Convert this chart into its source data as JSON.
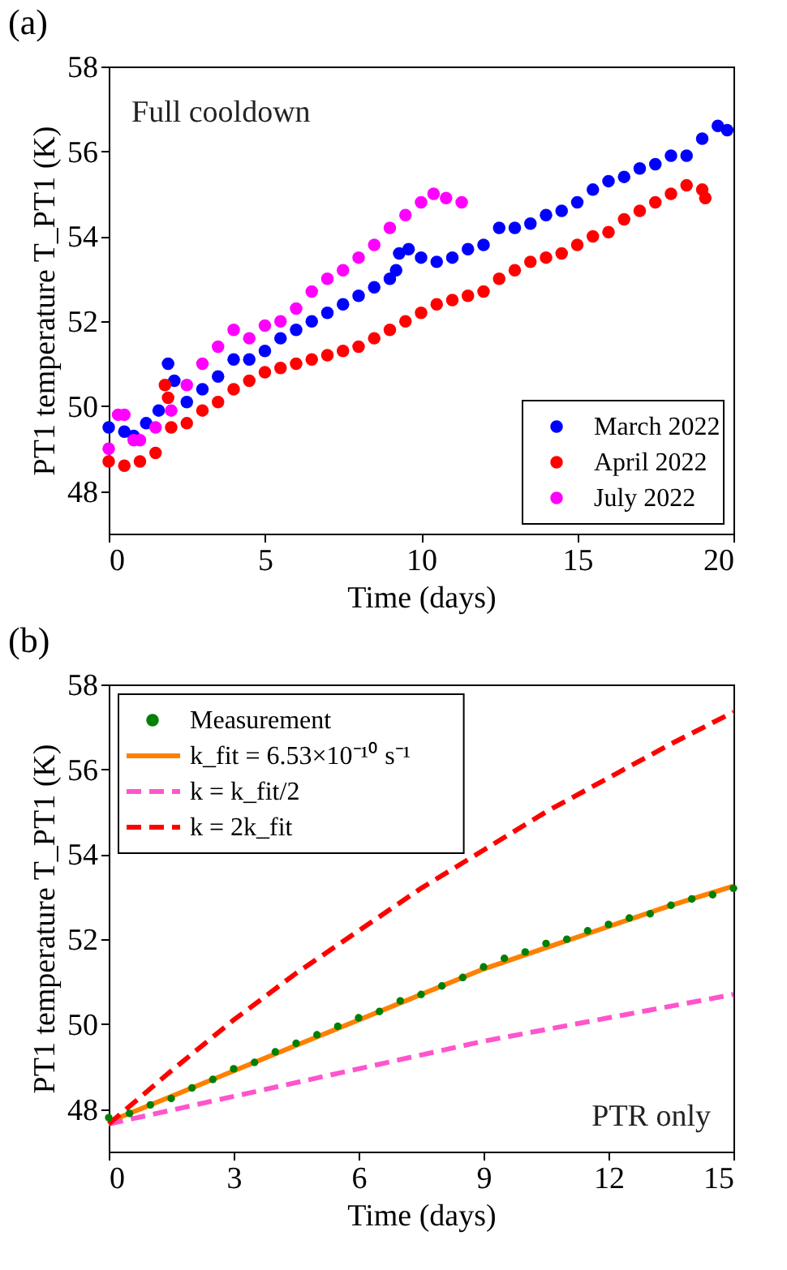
{
  "chart_data": [
    {
      "type": "scatter",
      "title": "(a)",
      "xlabel": "Time (days)",
      "ylabel": "PT1 temperature T_PT1 (K)",
      "xlim": [
        0,
        20
      ],
      "xticks": [
        0,
        5,
        10,
        15,
        20
      ],
      "ylim": [
        47,
        58
      ],
      "yticks": [
        48,
        50,
        52,
        54,
        56,
        58
      ],
      "grid": false,
      "legend": "bottom right",
      "marker": "circle",
      "annotations": [
        "Full cooldown"
      ],
      "series": [
        {
          "name": "March 2022",
          "color": "#0000ff",
          "x": [
            0,
            0.5,
            0.8,
            1.2,
            1.6,
            1.9,
            2.1,
            2.5,
            3,
            3.5,
            4,
            4.5,
            5,
            5.5,
            6,
            6.5,
            7,
            7.5,
            8,
            8.5,
            9,
            9.2,
            9.3,
            9.6,
            10,
            10.5,
            11,
            11.5,
            12,
            12.5,
            13,
            13.5,
            14,
            14.5,
            15,
            15.5,
            16,
            16.5,
            17,
            17.5,
            18,
            18.5,
            19,
            19.5,
            19.8
          ],
          "values": [
            49.5,
            49.4,
            49.3,
            49.6,
            49.9,
            51.0,
            50.6,
            50.1,
            50.4,
            50.7,
            51.1,
            51.1,
            51.3,
            51.6,
            51.8,
            52.0,
            52.2,
            52.4,
            52.6,
            52.8,
            53.0,
            53.2,
            53.6,
            53.7,
            53.5,
            53.4,
            53.5,
            53.7,
            53.8,
            54.2,
            54.2,
            54.3,
            54.5,
            54.6,
            54.8,
            55.1,
            55.3,
            55.4,
            55.6,
            55.7,
            55.9,
            55.9,
            56.3,
            56.6,
            56.5
          ]
        },
        {
          "name": "April 2022",
          "color": "#ff0000",
          "x": [
            0,
            0.5,
            1,
            1.5,
            1.8,
            1.9,
            2,
            2.5,
            3,
            3.5,
            4,
            4.5,
            5,
            5.5,
            6,
            6.5,
            7,
            7.5,
            8,
            8.5,
            9,
            9.5,
            10,
            10.5,
            11,
            11.5,
            12,
            12.5,
            13,
            13.5,
            14,
            14.5,
            15,
            15.5,
            16,
            16.5,
            17,
            17.5,
            18,
            18.5,
            19,
            19.1
          ],
          "values": [
            48.7,
            48.6,
            48.7,
            48.9,
            50.5,
            50.2,
            49.5,
            49.6,
            49.9,
            50.1,
            50.4,
            50.6,
            50.8,
            50.9,
            51.0,
            51.1,
            51.2,
            51.3,
            51.4,
            51.6,
            51.8,
            52.0,
            52.2,
            52.4,
            52.5,
            52.6,
            52.7,
            53.0,
            53.2,
            53.4,
            53.5,
            53.6,
            53.8,
            54.0,
            54.1,
            54.4,
            54.6,
            54.8,
            55.0,
            55.2,
            55.1,
            54.9
          ]
        },
        {
          "name": "July 2022",
          "color": "#ff00ff",
          "x": [
            0,
            0.3,
            0.5,
            0.8,
            1,
            1.5,
            2,
            2.5,
            3,
            3.5,
            4,
            4.5,
            5,
            5.5,
            6,
            6.5,
            7,
            7.5,
            8,
            8.5,
            9,
            9.5,
            10,
            10.4,
            10.8,
            11.3
          ],
          "values": [
            49.0,
            49.8,
            49.8,
            49.2,
            49.2,
            49.5,
            49.9,
            50.5,
            51.0,
            51.4,
            51.8,
            51.6,
            51.9,
            52.0,
            52.3,
            52.7,
            53.0,
            53.2,
            53.5,
            53.8,
            54.2,
            54.5,
            54.8,
            55.0,
            54.9,
            54.8
          ]
        }
      ]
    },
    {
      "type": "scatter",
      "title": "(b)",
      "xlabel": "Time (days)",
      "ylabel": "PT1 temperature T_PT1 (K)",
      "xlim": [
        0,
        15
      ],
      "xticks": [
        0,
        3,
        6,
        9,
        12,
        15
      ],
      "ylim": [
        47,
        58
      ],
      "yticks": [
        48,
        50,
        52,
        54,
        56,
        58
      ],
      "grid": false,
      "legend": "top left",
      "annotations": [
        "PTR only"
      ],
      "series": [
        {
          "name": "Measurement",
          "type": "scatter",
          "marker": "circle",
          "color": "#008000",
          "x": [
            0,
            0.5,
            1,
            1.5,
            2,
            2.5,
            3,
            3.5,
            4,
            4.5,
            5,
            5.5,
            6,
            6.5,
            7,
            7.5,
            8,
            8.5,
            9,
            9.5,
            10,
            10.5,
            11,
            11.5,
            12,
            12.5,
            13,
            13.5,
            14,
            14.5,
            15
          ],
          "values": [
            47.8,
            47.9,
            48.1,
            48.25,
            48.5,
            48.7,
            48.95,
            49.1,
            49.35,
            49.55,
            49.75,
            49.95,
            50.15,
            50.3,
            50.55,
            50.7,
            50.9,
            51.1,
            51.35,
            51.55,
            51.7,
            51.9,
            52.0,
            52.2,
            52.35,
            52.5,
            52.6,
            52.8,
            52.95,
            53.05,
            53.2
          ]
        },
        {
          "name": "k_fit = 6.53×10⁻¹⁰ s⁻¹",
          "type": "line",
          "line_style": "solid",
          "color": "#ff8000",
          "x": [
            0,
            1.5,
            3,
            4.5,
            6,
            7.5,
            9,
            10.5,
            12,
            13.5,
            15
          ],
          "values": [
            47.7,
            48.3,
            48.9,
            49.5,
            50.1,
            50.7,
            51.3,
            51.8,
            52.3,
            52.8,
            53.25
          ]
        },
        {
          "name": "k = k_fit/2",
          "type": "line",
          "line_style": "dashed",
          "color": "#ff55cc",
          "x": [
            0,
            3,
            6,
            9,
            12,
            15
          ],
          "values": [
            47.65,
            48.3,
            48.95,
            49.6,
            50.15,
            50.7
          ]
        },
        {
          "name": "k = 2k_fit",
          "type": "line",
          "line_style": "dashed",
          "color": "#ff0000",
          "x": [
            0,
            1.5,
            3,
            4.5,
            6,
            7.5,
            9,
            10.5,
            12,
            13.5,
            15
          ],
          "values": [
            47.65,
            48.9,
            50.1,
            51.2,
            52.2,
            53.2,
            54.1,
            55.0,
            55.8,
            56.6,
            57.35
          ]
        }
      ]
    }
  ]
}
